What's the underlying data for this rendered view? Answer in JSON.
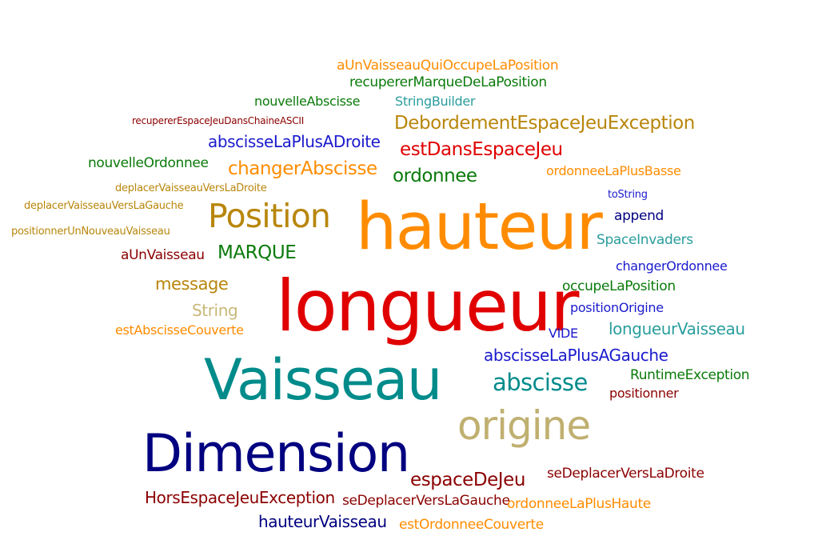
{
  "words": [
    {
      "text": "aUnVaisseauQuiOccupeLaPosition",
      "color": "#ff8c00"
    },
    {
      "text": "recupererMarqueDeLaPosition",
      "color": "#0a7a0a"
    },
    {
      "text": "nouvelleAbscisse",
      "color": "#0a7a0a"
    },
    {
      "text": "StringBuilder",
      "color": "#2a9d9d"
    },
    {
      "text": "recupererEspaceJeuDansChaineASCII",
      "color": "#8b0000"
    },
    {
      "text": "DebordementEspaceJeuException",
      "color": "#b8860b"
    },
    {
      "text": "abscisseLaPlusADroite",
      "color": "#1a1acd"
    },
    {
      "text": "estDansEspaceJeu",
      "color": "#e00000"
    },
    {
      "text": "nouvelleOrdonnee",
      "color": "#0a7a0a"
    },
    {
      "text": "changerAbscisse",
      "color": "#ff8c00"
    },
    {
      "text": "ordonnee",
      "color": "#0a7a0a"
    },
    {
      "text": "ordonneeLaPlusBasse",
      "color": "#ff8c00"
    },
    {
      "text": "deplacerVaisseauVersLaDroite",
      "color": "#b8860b"
    },
    {
      "text": "toString",
      "color": "#1a1acd"
    },
    {
      "text": "deplacerVaisseauVersLaGauche",
      "color": "#b8860b"
    },
    {
      "text": "Position",
      "color": "#b8860b"
    },
    {
      "text": "hauteur",
      "color": "#ff8c00"
    },
    {
      "text": "append",
      "color": "#000080"
    },
    {
      "text": "positionnerUnNouveauVaisseau",
      "color": "#b8860b"
    },
    {
      "text": "SpaceInvaders",
      "color": "#2a9d9d"
    },
    {
      "text": "aUnVaisseau",
      "color": "#8b0000"
    },
    {
      "text": "MARQUE",
      "color": "#0a7a0a"
    },
    {
      "text": "changerOrdonnee",
      "color": "#1a1acd"
    },
    {
      "text": "message",
      "color": "#b8860b"
    },
    {
      "text": "longueur",
      "color": "#e00000"
    },
    {
      "text": "occupeLaPosition",
      "color": "#0a7a0a"
    },
    {
      "text": "String",
      "color": "#c8b878"
    },
    {
      "text": "positionOrigine",
      "color": "#1a1acd"
    },
    {
      "text": "estAbscisseCouverte",
      "color": "#ff8c00"
    },
    {
      "text": "VIDE",
      "color": "#1a1acd"
    },
    {
      "text": "longueurVaisseau",
      "color": "#2a9d9d"
    },
    {
      "text": "abscisseLaPlusAGauche",
      "color": "#1a1acd"
    },
    {
      "text": "Vaisseau",
      "color": "#008b8b"
    },
    {
      "text": "abscisse",
      "color": "#008b8b"
    },
    {
      "text": "RuntimeException",
      "color": "#0a7a0a"
    },
    {
      "text": "positionner",
      "color": "#8b0000"
    },
    {
      "text": "origine",
      "color": "#c0b070"
    },
    {
      "text": "Dimension",
      "color": "#000080"
    },
    {
      "text": "espaceDeJeu",
      "color": "#8b0000"
    },
    {
      "text": "seDeplacerVersLaDroite",
      "color": "#8b0000"
    },
    {
      "text": "HorsEspaceJeuException",
      "color": "#8b0000"
    },
    {
      "text": "seDeplacerVersLaGauche",
      "color": "#8b0000"
    },
    {
      "text": "ordonneeLaPlusHaute",
      "color": "#ff8c00"
    },
    {
      "text": "hauteurVaisseau",
      "color": "#000080"
    },
    {
      "text": "estOrdonneeCouverte",
      "color": "#ff8c00"
    }
  ]
}
